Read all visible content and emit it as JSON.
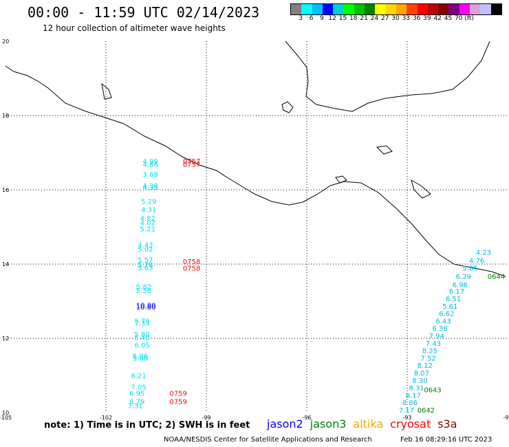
{
  "title": "00:00 - 11:59 UTC 02/14/2023",
  "subtitle": "12 hour collection of altimeter wave heights",
  "colorbar": {
    "colors": [
      "#808080",
      "#00ffff",
      "#00bfff",
      "#0000ff",
      "#00ced1",
      "#00ff00",
      "#00c000",
      "#008000",
      "#ffff00",
      "#ffd700",
      "#ffa500",
      "#ff4500",
      "#ff0000",
      "#c00000",
      "#800000",
      "#800080",
      "#ff00ff",
      "#dda0dd",
      "#c0c0ff",
      "#000000"
    ],
    "labels": [
      "3",
      "6",
      "9",
      "12",
      "15",
      "18",
      "21",
      "24",
      "27",
      "30",
      "33",
      "36",
      "39",
      "42",
      "45",
      "70",
      "(ft)"
    ]
  },
  "axes": {
    "lon_ticks": [
      "-105",
      "-102",
      "-99",
      "-96",
      "-93",
      "-90"
    ],
    "lat_ticks": [
      "20",
      "18",
      "16",
      "14",
      "12",
      "10"
    ]
  },
  "west_labels": [
    {
      "v": "4.99",
      "lat": 16.7,
      "lon": -100.9
    },
    {
      "v": "4.86",
      "lat": 16.62,
      "lon": -100.9
    },
    {
      "v": "3.69",
      "lat": 16.35,
      "lon": -100.9
    },
    {
      "v": "4.38",
      "lat": 16.05,
      "lon": -100.9
    },
    {
      "v": "4.35",
      "lat": 16.0,
      "lon": -100.9
    },
    {
      "v": "5.29",
      "lat": 15.62,
      "lon": -100.95
    },
    {
      "v": "4.31",
      "lat": 15.4,
      "lon": -100.95
    },
    {
      "v": "4.82",
      "lat": 15.17,
      "lon": -100.98
    },
    {
      "v": "4.02",
      "lat": 15.05,
      "lon": -100.98
    },
    {
      "v": "5.21",
      "lat": 14.88,
      "lon": -100.98
    },
    {
      "v": "4.43",
      "lat": 14.45,
      "lon": -101.05
    },
    {
      "v": "5.02",
      "lat": 14.33,
      "lon": -101.05
    },
    {
      "v": "5.57",
      "lat": 14.05,
      "lon": -101.05
    },
    {
      "v": "5.78",
      "lat": 13.92,
      "lon": -101.05
    },
    {
      "v": "5.63",
      "lat": 13.83,
      "lon": -101.05
    },
    {
      "v": "5.82",
      "lat": 13.32,
      "lon": -101.1
    },
    {
      "v": "5.56",
      "lat": 13.22,
      "lon": -101.1
    },
    {
      "v": "10.80",
      "lat": 12.82,
      "lon": -101.1,
      "c": "#0000ff"
    },
    {
      "v": "10.80",
      "lat": 12.78,
      "lon": -101.1,
      "c": "#0000ff"
    },
    {
      "v": "5.79",
      "lat": 12.4,
      "lon": -101.15
    },
    {
      "v": "7.33",
      "lat": 12.34,
      "lon": -101.15
    },
    {
      "v": "5.80",
      "lat": 12.05,
      "lon": -101.15
    },
    {
      "v": "5.40",
      "lat": 11.95,
      "lon": -101.15
    },
    {
      "v": "6.05",
      "lat": 11.75,
      "lon": -101.15
    },
    {
      "v": "5.86",
      "lat": 11.45,
      "lon": -101.2
    },
    {
      "v": "5.86",
      "lat": 11.4,
      "lon": -101.2
    },
    {
      "v": "6.21",
      "lat": 10.93,
      "lon": -101.25
    },
    {
      "v": "7.05",
      "lat": 10.62,
      "lon": -101.25
    },
    {
      "v": "6.95",
      "lat": 10.45,
      "lon": -101.3
    },
    {
      "v": "6.79",
      "lat": 10.23,
      "lon": -101.3
    },
    {
      "v": "7.31",
      "lat": 10.12,
      "lon": -101.35
    }
  ],
  "east_labels": [
    {
      "v": "4.23",
      "lat": 14.25,
      "lon": -90.95
    },
    {
      "v": "4.76",
      "lat": 14.03,
      "lon": -91.15
    },
    {
      "v": "5.85",
      "lat": 13.82,
      "lon": -91.35
    },
    {
      "v": "6.29",
      "lat": 13.6,
      "lon": -91.55
    },
    {
      "v": "6.96",
      "lat": 13.38,
      "lon": -91.65
    },
    {
      "v": "6.17",
      "lat": 13.2,
      "lon": -91.75
    },
    {
      "v": "6.51",
      "lat": 13.0,
      "lon": -91.85
    },
    {
      "v": "5.61",
      "lat": 12.8,
      "lon": -91.95
    },
    {
      "v": "6.62",
      "lat": 12.6,
      "lon": -92.05
    },
    {
      "v": "6.43",
      "lat": 12.4,
      "lon": -92.15
    },
    {
      "v": "6.36",
      "lat": 12.2,
      "lon": -92.25
    },
    {
      "v": "7.94",
      "lat": 12.0,
      "lon": -92.35
    },
    {
      "v": "7.43",
      "lat": 11.8,
      "lon": -92.45
    },
    {
      "v": "8.25",
      "lat": 11.6,
      "lon": -92.55
    },
    {
      "v": "7.52",
      "lat": 11.4,
      "lon": -92.6
    },
    {
      "v": "8.12",
      "lat": 11.2,
      "lon": -92.7
    },
    {
      "v": "8.07",
      "lat": 11.0,
      "lon": -92.8
    },
    {
      "v": "8.30",
      "lat": 10.8,
      "lon": -92.85
    },
    {
      "v": "8.31",
      "lat": 10.6,
      "lon": -92.95
    },
    {
      "v": "8.17",
      "lat": 10.4,
      "lon": -93.05
    },
    {
      "v": "8.86",
      "lat": 10.2,
      "lon": -93.15
    },
    {
      "v": "7.17",
      "lat": 10.0,
      "lon": -93.25
    }
  ],
  "time_labels": [
    {
      "v": "0757",
      "lat": 16.7,
      "lon": -99.7,
      "c": "#ff0000"
    },
    {
      "v": "0757",
      "lat": 16.62,
      "lon": -99.7,
      "c": "#ff0000"
    },
    {
      "v": "0758",
      "lat": 14.0,
      "lon": -99.7,
      "c": "#ff0000"
    },
    {
      "v": "0758",
      "lat": 13.82,
      "lon": -99.7,
      "c": "#ff0000"
    },
    {
      "v": "0759",
      "lat": 10.45,
      "lon": -100.1,
      "c": "#ff0000"
    },
    {
      "v": "0759",
      "lat": 10.23,
      "lon": -100.1,
      "c": "#ff0000"
    },
    {
      "v": "0644",
      "lat": 13.6,
      "lon": -90.6,
      "c": "#008000"
    },
    {
      "v": "0643",
      "lat": 10.55,
      "lon": -92.5,
      "c": "#008000"
    },
    {
      "v": "0642",
      "lat": 10.0,
      "lon": -92.7,
      "c": "#008000"
    }
  ],
  "note": "note: 1) Time is in UTC; 2) SWH is in feet",
  "legend": [
    {
      "name": "jason2",
      "color": "#0000ff"
    },
    {
      "name": "jason3",
      "color": "#008000"
    },
    {
      "name": "altika",
      "color": "#ffa500"
    },
    {
      "name": "cryosat",
      "color": "#ff0000"
    },
    {
      "name": "s3a",
      "color": "#800000"
    }
  ],
  "footer_left": "NOAA/NESDIS Center for Satellite Applications and Research",
  "footer_right": "Feb 16 08:29:16 UTC 2023"
}
